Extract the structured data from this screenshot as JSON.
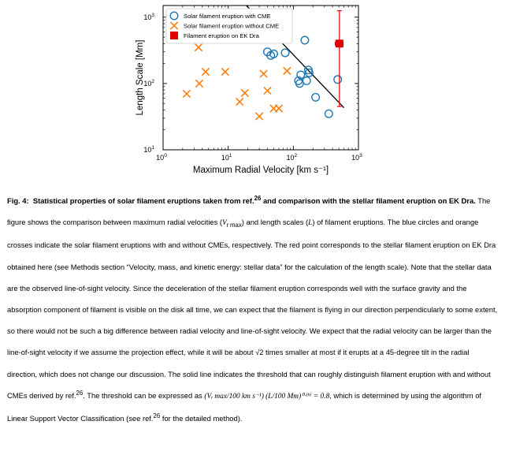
{
  "figure": {
    "chart_data": {
      "type": "scatter",
      "xscale": "log",
      "yscale": "log",
      "xlim": [
        1,
        1000
      ],
      "ylim": [
        10,
        1500
      ],
      "xlabel": "Maximum Radial Velocity [km s⁻¹]",
      "ylabel": "Length Scale [Mm]",
      "xticks": [
        {
          "value": 1,
          "base": "10",
          "exp": "0"
        },
        {
          "value": 10,
          "base": "10",
          "exp": "1"
        },
        {
          "value": 100,
          "base": "10",
          "exp": "2"
        },
        {
          "value": 1000,
          "base": "10",
          "exp": "3"
        }
      ],
      "yticks": [
        {
          "value": 10,
          "base": "10",
          "exp": "1"
        },
        {
          "value": 100,
          "base": "10",
          "exp": "2"
        },
        {
          "value": 1000,
          "base": "10",
          "exp": "3"
        }
      ],
      "series": [
        {
          "name": "Solar filament eruption with CME",
          "marker": "circle",
          "color": "#1f77b4",
          "points": [
            [
              40,
              300
            ],
            [
              45,
              265
            ],
            [
              50,
              280
            ],
            [
              75,
              290
            ],
            [
              120,
              110
            ],
            [
              125,
              100
            ],
            [
              130,
              135
            ],
            [
              150,
              450
            ],
            [
              160,
              110
            ],
            [
              170,
              160
            ],
            [
              175,
              145
            ],
            [
              220,
              62
            ],
            [
              350,
              35
            ],
            [
              480,
              115
            ]
          ]
        },
        {
          "name": "Solar filament eruption without CME",
          "marker": "x",
          "color": "#ff7f0e",
          "points": [
            [
              2.3,
              70
            ],
            [
              3.5,
              350
            ],
            [
              3.6,
              100
            ],
            [
              4.5,
              150
            ],
            [
              9,
              150
            ],
            [
              15,
              53
            ],
            [
              18,
              72
            ],
            [
              30,
              32
            ],
            [
              35,
              140
            ],
            [
              40,
              78
            ],
            [
              50,
              42
            ],
            [
              60,
              42
            ],
            [
              80,
              155
            ]
          ]
        },
        {
          "name": "Filament eruption on EK Dra",
          "marker": "square",
          "color": "#e00000",
          "points": [
            [
              510,
              400
            ]
          ],
          "xerr": [
            [
              440,
              580
            ]
          ],
          "yerr": [
            [
              45,
              1250
            ]
          ]
        }
      ],
      "threshold_line": {
        "label": "CME threshold",
        "points": [
          [
            19,
            1500
          ],
          [
            600,
            43
          ]
        ]
      },
      "legend": {
        "position": "top-left"
      }
    }
  },
  "caption": {
    "fig_label": "Fig. 4:",
    "title_part1": "Statistical properties of solar filament eruptions taken from ref.",
    "title_ref": "26",
    "title_part2": " and comparison with the stellar filament eruption on EK Dra.",
    "s1_a": "The figure shows the comparison between maximum radial velocities (",
    "s1_vsym": "V",
    "s1_vsub": "r max",
    "s1_b": ") and length scales (",
    "s1_lsym": "L",
    "s1_c": ") of filament eruptions. The blue circles and orange crosses indicate the solar filament eruptions with and without CMEs, respectively. The red point corresponds to the stellar filament eruption on EK Dra obtained here (see Methods section “Velocity, mass, and kinetic energy: stellar data” for the calculation of the length scale). Note that the stellar data are the observed line-of-sight velocity. Since the deceleration of the stellar filament eruption corresponds well with the surface gravity and the absorption component of filament is visible on the disk all time, we can expect that the filament is flying in our direction perpendicularly to some extent, so there would not be such a big difference between radial velocity and line-of-sight velocity. We expect that the radial velocity can be larger than the line-of-sight velocity if we assume the projection effect, while it will be about ",
    "s1_sqrt": "√2",
    "s1_d": " times smaller at most if it erupts at a 45-degree tilt in the radial direction, which does not change our discussion. The solid line indicates the threshold that can roughly distinguish filament eruption with and without CMEs derived by ref.",
    "s1_ref": "26",
    "s1_e": ". The threshold can be expressed as ",
    "formula": "(Vᵣ max/100 km s⁻¹) (L/100 Mm)⁰⋅⁹⁶ = 0.8",
    "s1_f": ", which is determined by using the algorithm of Linear Support Vector Classification (see ref.",
    "s1_ref2": "26",
    "s1_g": " for the detailed method)."
  }
}
